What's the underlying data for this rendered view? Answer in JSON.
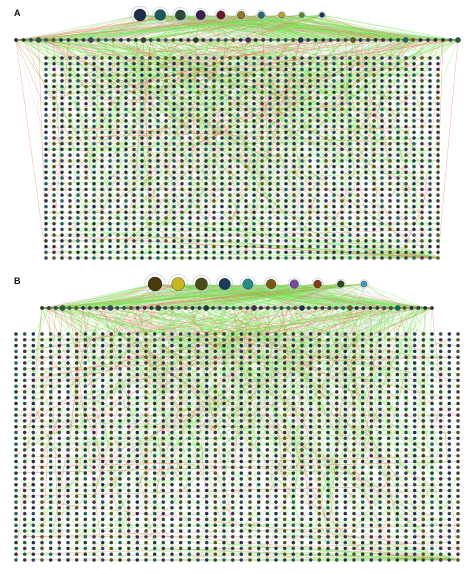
{
  "panels": [
    {
      "label": "A",
      "hub_count": 10,
      "hub_row_count": 60,
      "grid_cols": 50,
      "grid_rows": 36,
      "hub_colors": [
        "#1c2e4a",
        "#1f5a5a",
        "#2a4a3c",
        "#3a2050",
        "#6a1a2a",
        "#8a7a20",
        "#2a6a7a",
        "#c8a020",
        "#5a8a2a",
        "#1a3a4a"
      ]
    },
    {
      "label": "B",
      "hub_count": 10,
      "hub_row_count": 58,
      "grid_cols": 52,
      "grid_rows": 40,
      "hub_colors": [
        "#4a3a10",
        "#c8b820",
        "#4a4a1a",
        "#1a3a5a",
        "#2a8a8a",
        "#7a5a10",
        "#7a4aa0",
        "#8a3a10",
        "#2a4a1a",
        "#3aa0c0"
      ]
    }
  ],
  "legend_colors": {
    "edge_positive": "#66ee44",
    "edge_negative": "#ee6a55",
    "edge_neutral": "#c8c8c8"
  }
}
